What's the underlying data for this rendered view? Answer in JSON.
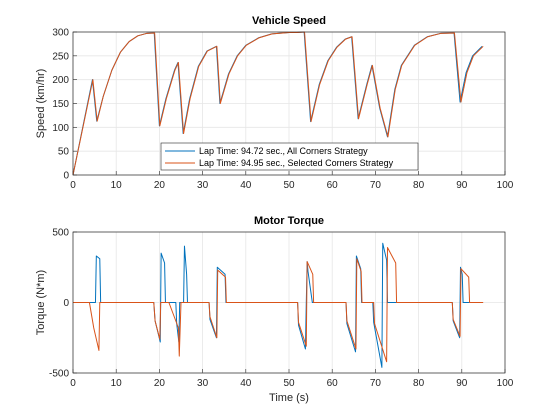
{
  "colors": {
    "blue": "#0072BD",
    "orange": "#D95319",
    "grid": "#e6e6e6",
    "axis": "#262626"
  },
  "chart_data": [
    {
      "type": "line",
      "title": "Vehicle Speed",
      "xlabel": "",
      "ylabel": "Speed (km/hr)",
      "xlim": [
        0,
        100
      ],
      "ylim": [
        0,
        300
      ],
      "xticks": [
        "0",
        "10",
        "20",
        "30",
        "40",
        "50",
        "60",
        "70",
        "80",
        "90",
        "100"
      ],
      "yticks": [
        "0",
        "50",
        "100",
        "150",
        "200",
        "250",
        "300"
      ],
      "grid": true,
      "legend_position": "bottom-center",
      "legend": [
        "Lap Time: 94.72 sec., All Corners Strategy",
        "Lap Time: 94.95 sec., Selected Corners Strategy"
      ],
      "series": [
        {
          "name": "Lap Time: 94.72 sec., All Corners Strategy",
          "color": "#0072BD",
          "x": [
            0,
            4.5,
            5.5,
            7,
            9,
            11,
            13,
            15,
            17,
            18.8,
            20,
            21.5,
            23.5,
            24.3,
            25.5,
            27,
            29,
            31,
            33.2,
            34,
            36,
            38,
            40,
            43,
            46,
            50,
            51.8,
            53.5,
            55,
            57,
            59,
            61,
            63,
            64.5,
            66,
            68,
            69.2,
            71,
            72.8,
            74.5,
            76,
            79,
            82,
            85,
            88.2,
            89.6,
            91,
            92.5,
            94.7
          ],
          "y": [
            0,
            200,
            113,
            165,
            220,
            258,
            280,
            292,
            297,
            298,
            103,
            160,
            220,
            236,
            87,
            160,
            228,
            260,
            270,
            150,
            212,
            250,
            272,
            288,
            296,
            299,
            299,
            300,
            112,
            190,
            240,
            268,
            285,
            290,
            118,
            190,
            230,
            140,
            80,
            180,
            230,
            272,
            290,
            297,
            298,
            153,
            215,
            250,
            270
          ]
        },
        {
          "name": "Lap Time: 94.95 sec., Selected Corners Strategy",
          "color": "#D95319",
          "x": [
            0,
            4.6,
            5.6,
            7,
            9,
            11,
            13,
            15,
            17,
            18.9,
            20.1,
            21.6,
            23.6,
            24.4,
            25.6,
            27.1,
            29.1,
            31.1,
            33.3,
            34.1,
            36.1,
            38.1,
            40.1,
            43.1,
            46.1,
            50.1,
            51.9,
            53.6,
            55.1,
            57.1,
            59.1,
            61.1,
            63.1,
            64.6,
            66.1,
            68.1,
            69.3,
            71.1,
            72.9,
            74.6,
            76.1,
            79.1,
            82.1,
            85.1,
            88.3,
            89.8,
            91.2,
            92.7,
            94.95
          ],
          "y": [
            0,
            200,
            113,
            165,
            220,
            258,
            280,
            292,
            297,
            298,
            103,
            160,
            220,
            236,
            87,
            160,
            228,
            260,
            270,
            150,
            212,
            250,
            272,
            288,
            296,
            299,
            299,
            300,
            112,
            190,
            240,
            268,
            285,
            290,
            118,
            190,
            230,
            140,
            80,
            180,
            230,
            272,
            290,
            297,
            298,
            153,
            215,
            250,
            270
          ]
        }
      ]
    },
    {
      "type": "line",
      "title": "Motor Torque",
      "xlabel": "Time (s)",
      "ylabel": "Torque (N*m)",
      "xlim": [
        0,
        100
      ],
      "ylim": [
        -500,
        500
      ],
      "xticks": [
        "0",
        "10",
        "20",
        "30",
        "40",
        "50",
        "60",
        "70",
        "80",
        "90",
        "100"
      ],
      "yticks": [
        "-500",
        "0",
        "500"
      ],
      "grid": true,
      "series": [
        {
          "name": "All Corners Strategy",
          "color": "#0072BD",
          "x": [
            0,
            5.2,
            5.4,
            6.2,
            6.4,
            18.7,
            19,
            20.2,
            20.4,
            21.2,
            21.4,
            23.8,
            24,
            24.5,
            24.7,
            25.6,
            25.8,
            26.3,
            26.5,
            31.5,
            31.7,
            33.2,
            33.4,
            35.2,
            35.4,
            52,
            52.2,
            53.8,
            54,
            54.2,
            54.4,
            55.4,
            55.6,
            63.2,
            63.4,
            65.4,
            65.6,
            66.6,
            66.8,
            69.4,
            69.6,
            71.5,
            71.7,
            72.6,
            72.8,
            74.6,
            74.8,
            87.8,
            88,
            89.5,
            89.7,
            90.1,
            90.3,
            91.5,
            91.7,
            94.7
          ],
          "y": [
            0,
            0,
            330,
            310,
            0,
            0,
            -130,
            -280,
            350,
            280,
            0,
            0,
            -150,
            -280,
            0,
            0,
            400,
            200,
            0,
            0,
            -120,
            -250,
            250,
            200,
            0,
            0,
            -160,
            -330,
            0,
            290,
            220,
            0,
            0,
            0,
            -150,
            -350,
            330,
            240,
            0,
            0,
            -140,
            -460,
            420,
            300,
            0,
            0,
            0,
            0,
            -130,
            -250,
            250,
            200,
            0,
            0,
            0,
            0
          ]
        },
        {
          "name": "Selected Corners Strategy",
          "color": "#D95319",
          "x": [
            0,
            3.8,
            4.8,
            6,
            6.2,
            18.7,
            19,
            20.1,
            20.3,
            22,
            22.2,
            24.4,
            24.6,
            25,
            25.2,
            26.3,
            26.5,
            31.5,
            31.7,
            33.3,
            33.5,
            35.3,
            35.5,
            52,
            52.2,
            54,
            54.2,
            55.5,
            55.7,
            63.2,
            63.4,
            65.5,
            65.7,
            66.7,
            66.9,
            69.6,
            69.8,
            72.6,
            72.8,
            74.7,
            74.9,
            87.8,
            88,
            89.6,
            89.8,
            91.6,
            91.8,
            94.95
          ],
          "y": [
            0,
            0,
            -180,
            -340,
            0,
            0,
            -130,
            -260,
            0,
            0,
            0,
            -180,
            -380,
            0,
            0,
            0,
            0,
            0,
            -100,
            -250,
            230,
            180,
            0,
            0,
            -140,
            -310,
            290,
            200,
            0,
            0,
            -130,
            -330,
            310,
            220,
            0,
            0,
            -150,
            -420,
            390,
            280,
            0,
            0,
            -120,
            -240,
            240,
            180,
            0,
            0
          ]
        }
      ]
    }
  ]
}
